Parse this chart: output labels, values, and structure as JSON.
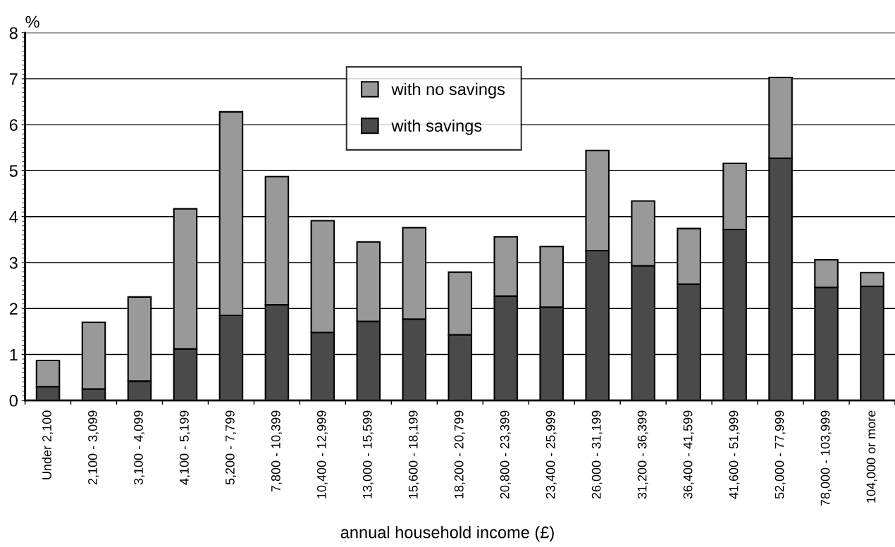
{
  "chart_data": {
    "type": "bar",
    "stacked": true,
    "ylabel": "%",
    "xlabel": "annual household income (£)",
    "categories": [
      "Under 2,100",
      "2,100 - 3,099",
      "3,100 - 4,099",
      "4,100 - 5,199",
      "5,200 - 7,799",
      "7,800 - 10,399",
      "10,400 - 12,999",
      "13,000 - 15,599",
      "15,600 - 18,199",
      "18,200 - 20,799",
      "20,800 - 23,399",
      "23,400 - 25,999",
      "26,000 - 31,199",
      "31,200 - 36,399",
      "36,400 - 41,599",
      "41,600 - 51,999",
      "52,000 - 77,999",
      "78,000 - 103,999",
      "104,000 or more"
    ],
    "series": [
      {
        "name": "with savings",
        "color": "#4a4a4a",
        "values": [
          0.3,
          0.25,
          0.42,
          1.12,
          1.85,
          2.08,
          1.48,
          1.72,
          1.77,
          1.43,
          2.27,
          2.03,
          3.26,
          2.93,
          2.53,
          3.72,
          5.27,
          2.46,
          2.48
        ]
      },
      {
        "name": "with no savings",
        "color": "#999999",
        "values": [
          0.57,
          1.45,
          1.83,
          3.05,
          4.43,
          2.79,
          2.43,
          1.73,
          1.99,
          1.36,
          1.29,
          1.32,
          2.18,
          1.41,
          1.21,
          1.44,
          1.76,
          0.6,
          0.3
        ]
      }
    ],
    "ylim": [
      0,
      8
    ],
    "yticks": [
      0,
      1,
      2,
      3,
      4,
      5,
      6,
      7,
      8
    ],
    "grid": "y",
    "legend": "top"
  }
}
